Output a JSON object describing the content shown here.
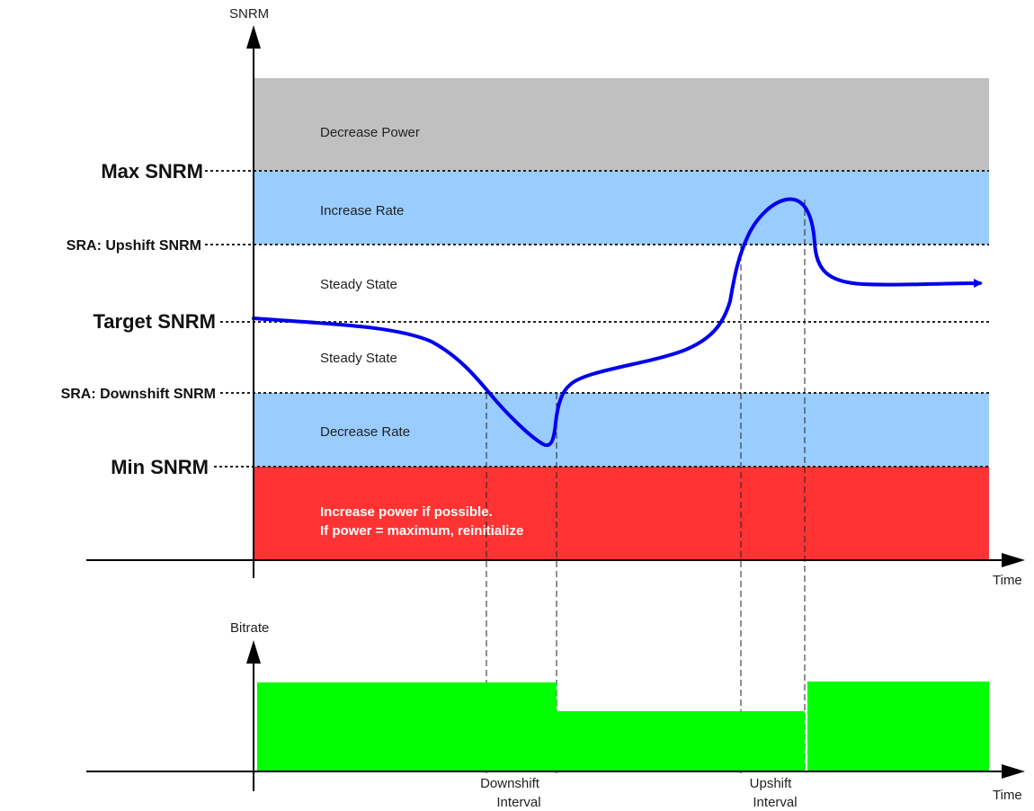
{
  "colors": {
    "decrease_power": "#c0c0c0",
    "increase_rate": "#99ccff",
    "decrease_rate": "#99ccff",
    "reinit": "#ff3333",
    "curve": "#0000ee",
    "bitrate": "#00ff00"
  },
  "axes": {
    "snrm_axis_label": "SNRM",
    "time_label_top": "Time",
    "bitrate_axis_label": "Bitrate",
    "time_label_bottom": "Time"
  },
  "levels": {
    "max": "Max SNRM",
    "upshift": "SRA: Upshift SNRM",
    "target": "Target SNRM",
    "downshift": "SRA: Downshift SNRM",
    "min": "Min SNRM"
  },
  "zones": {
    "decrease_power": "Decrease Power",
    "increase_rate": "Increase Rate",
    "steady_upper": "Steady State",
    "steady_lower": "Steady State",
    "decrease_rate": "Decrease Rate",
    "reinit_line1": "Increase power if possible.",
    "reinit_line2": "If power = maximum, reinitialize"
  },
  "intervals": {
    "downshift_line1": "Downshift",
    "downshift_line2": "Interval",
    "upshift_line1": "Upshift",
    "upshift_line2": "Interval"
  }
}
